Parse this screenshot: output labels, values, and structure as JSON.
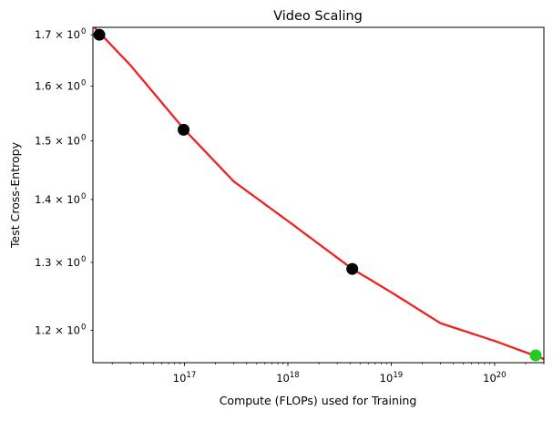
{
  "chart_data": {
    "type": "scatter",
    "title": "Video Scaling",
    "xlabel": "Compute (FLOPs) used for Training",
    "ylabel": "Test Cross-Entropy",
    "x_scale": "log",
    "y_scale": "log",
    "xlim": [
      1.3e+16,
      3e+20
    ],
    "ylim": [
      1.155,
      1.715
    ],
    "grid": false,
    "legend": "none",
    "x_ticks": [
      {
        "value": 1e+17,
        "base": "10",
        "exp": "17"
      },
      {
        "value": 1e+18,
        "base": "10",
        "exp": "18"
      },
      {
        "value": 1e+19,
        "base": "10",
        "exp": "19"
      },
      {
        "value": 1e+20,
        "base": "10",
        "exp": "20"
      }
    ],
    "y_ticks": [
      {
        "value": 1.2,
        "mantissa": "1.2 × 10",
        "exp": "0"
      },
      {
        "value": 1.3,
        "mantissa": "1.3 × 10",
        "exp": "0"
      },
      {
        "value": 1.4,
        "mantissa": "1.4 × 10",
        "exp": "0"
      },
      {
        "value": 1.5,
        "mantissa": "1.5 × 10",
        "exp": "0"
      },
      {
        "value": 1.6,
        "mantissa": "1.6 × 10",
        "exp": "0"
      },
      {
        "value": 1.7,
        "mantissa": "1.7 × 10",
        "exp": "0"
      }
    ],
    "points": [
      {
        "x": 1.5e+16,
        "y": 1.7,
        "color": "#000000"
      },
      {
        "x": 9.8e+16,
        "y": 1.52,
        "color": "#000000"
      },
      {
        "x": 4.2e+18,
        "y": 1.29,
        "color": "#000000"
      },
      {
        "x": 2.5e+20,
        "y": 1.165,
        "color": "#22cc22"
      }
    ],
    "fit_curve": {
      "color": "#ee2222",
      "points": [
        {
          "x": 1.3e+16,
          "y": 1.718
        },
        {
          "x": 3e+16,
          "y": 1.64
        },
        {
          "x": 1e+17,
          "y": 1.52
        },
        {
          "x": 3e+17,
          "y": 1.43
        },
        {
          "x": 1e+18,
          "y": 1.365
        },
        {
          "x": 4.2e+18,
          "y": 1.29
        },
        {
          "x": 1e+19,
          "y": 1.255
        },
        {
          "x": 3e+19,
          "y": 1.21
        },
        {
          "x": 1e+20,
          "y": 1.185
        },
        {
          "x": 3e+20,
          "y": 1.16
        }
      ]
    }
  }
}
